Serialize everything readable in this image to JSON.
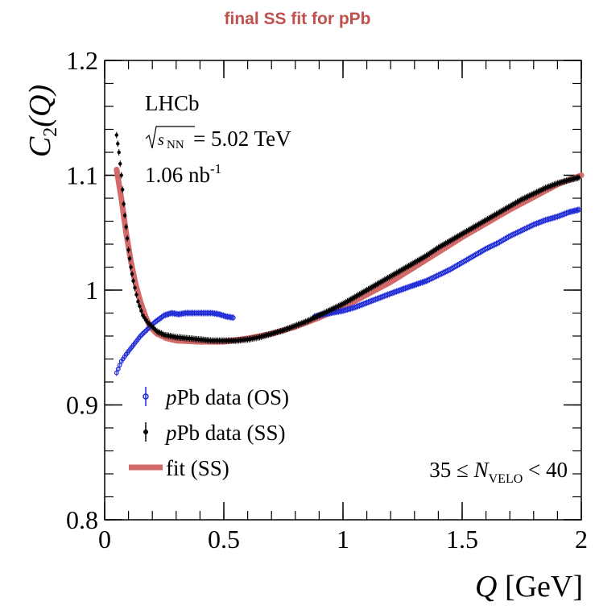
{
  "page": {
    "title": "final SS fit for pPb"
  },
  "chart_data": {
    "type": "scatter",
    "ylabel_main": "C",
    "ylabel_sub": "2",
    "ylabel_arg": "(Q)",
    "xlabel_var": "Q",
    "xlabel_unit": " [GeV]",
    "xlim": [
      0,
      2
    ],
    "ylim": [
      0.8,
      1.2
    ],
    "xticks": [
      0,
      0.5,
      1,
      1.5,
      2
    ],
    "xtick_labels": [
      "0",
      "0.5",
      "1",
      "1.5",
      "2"
    ],
    "yticks": [
      0.8,
      0.9,
      1.0,
      1.1,
      1.2
    ],
    "ytick_labels": [
      "0.8",
      "0.9",
      "1",
      "1.1",
      "1.2"
    ],
    "annotations": {
      "experiment": "LHCb",
      "energy_sqrt": "s",
      "energy_sub": "NN",
      "energy_value": " = 5.02 TeV",
      "lumi_value": "1.06 nb",
      "lumi_sup": "-1",
      "mult_prefix": "35 ≤ ",
      "mult_var": "N",
      "mult_sub": "VELO",
      "mult_suffix": " < 40"
    },
    "legend": {
      "placement": "bottom-left",
      "items": [
        {
          "prefix": "p",
          "text": "Pb data (OS)",
          "color": "#1f2bd6"
        },
        {
          "prefix": "p",
          "text": "Pb data (SS)",
          "color": "#000000"
        },
        {
          "prefix": "",
          "text": "fit (SS)",
          "color": "#d36a6a"
        }
      ]
    },
    "series": [
      {
        "key": "os",
        "color": "#1f2bd6",
        "points": [
          [
            0.05,
            0.928
          ],
          [
            0.07,
            0.938
          ],
          [
            0.09,
            0.944
          ],
          [
            0.12,
            0.952
          ],
          [
            0.15,
            0.96
          ],
          [
            0.18,
            0.966
          ],
          [
            0.21,
            0.972
          ],
          [
            0.25,
            0.978
          ],
          [
            0.28,
            0.98
          ],
          [
            0.31,
            0.979
          ],
          [
            0.34,
            0.98
          ],
          [
            0.37,
            0.98
          ],
          [
            0.45,
            0.98
          ],
          [
            0.48,
            0.979
          ],
          [
            0.51,
            0.977
          ],
          [
            0.54,
            0.976
          ],
          [
            0.88,
            0.977
          ],
          [
            0.92,
            0.979
          ],
          [
            1.0,
            0.982
          ],
          [
            1.05,
            0.985
          ],
          [
            1.1,
            0.989
          ],
          [
            1.15,
            0.993
          ],
          [
            1.2,
            0.997
          ],
          [
            1.28,
            1.003
          ],
          [
            1.35,
            1.008
          ],
          [
            1.4,
            1.013
          ],
          [
            1.45,
            1.018
          ],
          [
            1.5,
            1.024
          ],
          [
            1.55,
            1.03
          ],
          [
            1.6,
            1.036
          ],
          [
            1.65,
            1.041
          ],
          [
            1.7,
            1.047
          ],
          [
            1.75,
            1.052
          ],
          [
            1.8,
            1.057
          ],
          [
            1.85,
            1.061
          ],
          [
            1.9,
            1.064
          ],
          [
            1.95,
            1.068
          ],
          [
            1.99,
            1.07
          ]
        ]
      },
      {
        "key": "ss",
        "color": "#000000",
        "points": [
          [
            0.05,
            1.135
          ],
          [
            0.06,
            1.12
          ],
          [
            0.07,
            1.1
          ],
          [
            0.08,
            1.075
          ],
          [
            0.09,
            1.055
          ],
          [
            0.1,
            1.035
          ],
          [
            0.11,
            1.02
          ],
          [
            0.12,
            1.008
          ],
          [
            0.14,
            0.99
          ],
          [
            0.16,
            0.978
          ],
          [
            0.18,
            0.972
          ],
          [
            0.2,
            0.968
          ],
          [
            0.22,
            0.964
          ],
          [
            0.25,
            0.961
          ],
          [
            0.3,
            0.959
          ],
          [
            0.35,
            0.958
          ],
          [
            0.4,
            0.957
          ],
          [
            0.45,
            0.956
          ],
          [
            0.5,
            0.956
          ],
          [
            0.55,
            0.956
          ],
          [
            0.6,
            0.957
          ],
          [
            0.65,
            0.959
          ],
          [
            0.7,
            0.962
          ],
          [
            0.75,
            0.965
          ],
          [
            0.8,
            0.969
          ],
          [
            0.85,
            0.973
          ],
          [
            0.9,
            0.978
          ],
          [
            0.95,
            0.983
          ],
          [
            1.0,
            0.988
          ],
          [
            1.05,
            0.994
          ],
          [
            1.1,
            1.0
          ],
          [
            1.15,
            1.006
          ],
          [
            1.2,
            1.012
          ],
          [
            1.25,
            1.018
          ],
          [
            1.3,
            1.024
          ],
          [
            1.35,
            1.03
          ],
          [
            1.4,
            1.037
          ],
          [
            1.45,
            1.043
          ],
          [
            1.5,
            1.049
          ],
          [
            1.55,
            1.055
          ],
          [
            1.6,
            1.061
          ],
          [
            1.65,
            1.067
          ],
          [
            1.7,
            1.073
          ],
          [
            1.75,
            1.079
          ],
          [
            1.8,
            1.084
          ],
          [
            1.85,
            1.089
          ],
          [
            1.9,
            1.093
          ],
          [
            1.95,
            1.096
          ],
          [
            1.99,
            1.098
          ]
        ]
      },
      {
        "key": "fit",
        "color": "#d36a6a",
        "line": true,
        "points": [
          [
            0.05,
            1.105
          ],
          [
            0.07,
            1.08
          ],
          [
            0.09,
            1.05
          ],
          [
            0.11,
            1.025
          ],
          [
            0.13,
            1.005
          ],
          [
            0.15,
            0.99
          ],
          [
            0.17,
            0.978
          ],
          [
            0.19,
            0.968
          ],
          [
            0.22,
            0.962
          ],
          [
            0.26,
            0.958
          ],
          [
            0.3,
            0.956
          ],
          [
            0.4,
            0.955
          ],
          [
            0.5,
            0.955
          ],
          [
            0.6,
            0.958
          ],
          [
            0.7,
            0.962
          ],
          [
            0.8,
            0.968
          ],
          [
            0.9,
            0.976
          ],
          [
            1.0,
            0.985
          ],
          [
            1.1,
            0.996
          ],
          [
            1.2,
            1.007
          ],
          [
            1.3,
            1.02
          ],
          [
            1.4,
            1.033
          ],
          [
            1.5,
            1.046
          ],
          [
            1.6,
            1.058
          ],
          [
            1.7,
            1.07
          ],
          [
            1.8,
            1.081
          ],
          [
            1.9,
            1.092
          ],
          [
            2.0,
            1.1
          ]
        ]
      }
    ]
  }
}
